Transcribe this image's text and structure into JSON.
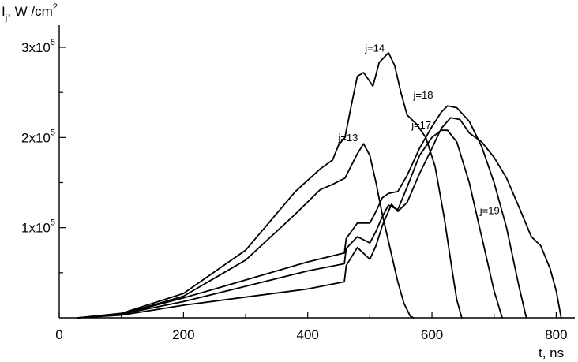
{
  "chart_data": {
    "type": "line",
    "title": "",
    "xlabel": "t, ns",
    "ylabel": "I_j, W/cm^2",
    "ylabel_parts": {
      "main": "I",
      "sub": "j",
      "unit": ", W /cm",
      "sup": "2"
    },
    "xlim": [
      0,
      830
    ],
    "ylim": [
      0,
      300000
    ],
    "x_ticks": [
      {
        "value": 0,
        "label": "0"
      },
      {
        "value": 200,
        "label": "200"
      },
      {
        "value": 400,
        "label": "400"
      },
      {
        "value": 600,
        "label": "600"
      },
      {
        "value": 800,
        "label": "800"
      }
    ],
    "x_minor_ticks": [
      100,
      300,
      500,
      700
    ],
    "y_ticks": [
      {
        "value": 100000,
        "mantissa": "1x10",
        "exponent": "5"
      },
      {
        "value": 200000,
        "mantissa": "2x10",
        "exponent": "5"
      },
      {
        "value": 300000,
        "mantissa": "3x10",
        "exponent": "5"
      }
    ],
    "y_minor_ticks": [
      50000,
      150000,
      250000
    ],
    "grid": false,
    "legend": "none",
    "series": [
      {
        "name": "j=13",
        "label_at": [
          465,
          196000
        ],
        "x": [
          30,
          100,
          200,
          300,
          380,
          420,
          440,
          460,
          480,
          490,
          500,
          510,
          520,
          535,
          545,
          555,
          565,
          570
        ],
        "y": [
          0,
          4000,
          24000,
          64000,
          115000,
          142000,
          148000,
          155000,
          182000,
          193000,
          180000,
          150000,
          115000,
          70000,
          40000,
          16000,
          2000,
          0
        ]
      },
      {
        "name": "j=14",
        "label_at": [
          508,
          295000
        ],
        "x": [
          30,
          100,
          200,
          300,
          380,
          420,
          440,
          450,
          460,
          470,
          480,
          490,
          500,
          505,
          515,
          530,
          540,
          550,
          560,
          575,
          590,
          605,
          620,
          632,
          640,
          648
        ],
        "y": [
          0,
          5000,
          27000,
          75000,
          140000,
          165000,
          175000,
          192000,
          200000,
          235000,
          268000,
          272000,
          262000,
          257000,
          283000,
          294000,
          280000,
          250000,
          225000,
          215000,
          200000,
          168000,
          110000,
          55000,
          20000,
          0
        ]
      },
      {
        "name": "j=17",
        "label_at": [
          583,
          210000
        ],
        "x": [
          30,
          100,
          200,
          300,
          400,
          459,
          462,
          480,
          500,
          510,
          520,
          530,
          545,
          560,
          580,
          600,
          615,
          625,
          640,
          660,
          680,
          700,
          713
        ],
        "y": [
          0,
          4000,
          18000,
          35000,
          52000,
          60000,
          77000,
          90000,
          83000,
          96000,
          112000,
          125000,
          120000,
          145000,
          180000,
          200000,
          208000,
          208000,
          195000,
          150000,
          90000,
          30000,
          0
        ]
      },
      {
        "name": "j=18",
        "label_at": [
          586,
          243000
        ],
        "x": [
          30,
          100,
          200,
          300,
          400,
          459,
          462,
          480,
          500,
          510,
          520,
          530,
          545,
          560,
          580,
          600,
          615,
          625,
          640,
          660,
          680,
          700,
          720,
          740,
          752
        ],
        "y": [
          0,
          4000,
          22000,
          42000,
          62000,
          72000,
          88000,
          105000,
          105000,
          118000,
          133000,
          138000,
          140000,
          158000,
          188000,
          212000,
          228000,
          235000,
          233000,
          218000,
          190000,
          150000,
          100000,
          35000,
          0
        ]
      },
      {
        "name": "j=19",
        "label_at": [
          693,
          115000
        ],
        "x": [
          30,
          100,
          200,
          300,
          400,
          459,
          462,
          480,
          500,
          510,
          520,
          535,
          545,
          560,
          580,
          600,
          615,
          630,
          645,
          660,
          680,
          700,
          720,
          740,
          760,
          775,
          790,
          800,
          808
        ],
        "y": [
          0,
          3000,
          14000,
          23000,
          32000,
          40000,
          58000,
          78000,
          65000,
          80000,
          102000,
          126000,
          118000,
          128000,
          160000,
          188000,
          210000,
          222000,
          220000,
          205000,
          195000,
          178000,
          155000,
          123000,
          90000,
          80000,
          55000,
          30000,
          0
        ]
      }
    ]
  }
}
